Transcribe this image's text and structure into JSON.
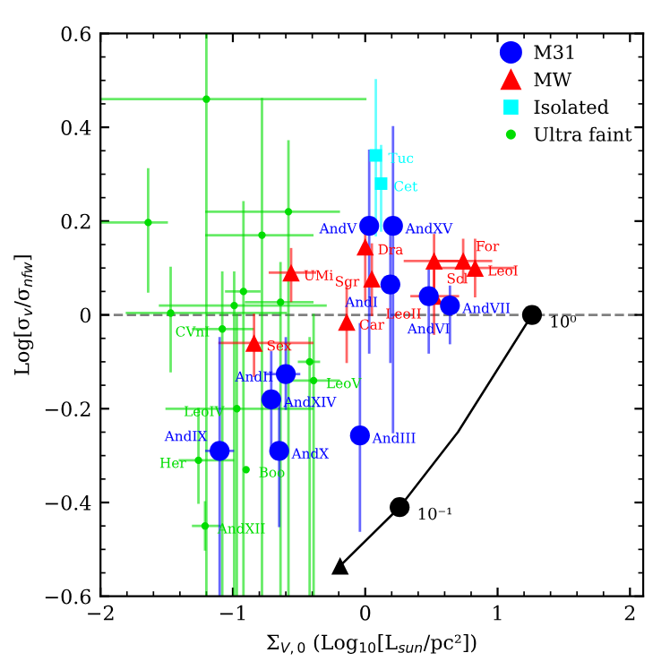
{
  "chart_data": {
    "type": "scatter",
    "xlabel": "Σ$_{V,0}$ (Log$_{10}$[L$_{sun}$/pc²])",
    "ylabel": "Log[σ$_{v}$/σ$_{nfw}$]",
    "xlim": [
      -2,
      2.1
    ],
    "ylim": [
      -0.6,
      0.6
    ],
    "xticks": [
      {
        "value": -2,
        "label": "−2"
      },
      {
        "value": -1,
        "label": "−1"
      },
      0,
      1,
      2
    ],
    "yticks": [
      {
        "value": -0.6,
        "label": "−0.6"
      },
      {
        "value": -0.4,
        "label": "−0.4"
      },
      {
        "value": -0.2,
        "label": "−0.2"
      },
      0,
      0.2,
      0.4,
      0.6
    ],
    "grid": false,
    "legend": "top right",
    "annotations": [
      {
        "text": "10⁰",
        "x": 1.26,
        "y": 0.0
      },
      {
        "text": "10⁻¹",
        "x": 0.26,
        "y": -0.41
      }
    ],
    "ref_lines": [
      {
        "axis": "y",
        "value": 0,
        "color": "#808080",
        "line_style": "dashed"
      }
    ],
    "series": [
      {
        "name": "Ultra faint",
        "color": "#00dd00",
        "marker": "circle",
        "x": [
          -1.64,
          -1.2,
          -0.78,
          -0.58,
          -1.47,
          -0.99,
          -0.92,
          -0.64,
          -1.08,
          -0.39,
          -0.42,
          -0.97,
          -1.26,
          -0.9,
          -1.21
        ],
        "values": [
          0.197,
          0.46,
          0.17,
          0.22,
          0.004,
          0.02,
          0.05,
          0.027,
          -0.03,
          -0.14,
          -0.1,
          -0.2,
          -0.31,
          -0.33,
          -0.45
        ],
        "errors": [
          [
            0.05,
            0.31
          ],
          [
            -0.6,
            0.6
          ],
          [
            -0.6,
            0.46
          ],
          [
            -0.6,
            0.37
          ],
          [
            -0.12,
            0.1
          ],
          [
            -0.6,
            0.09
          ],
          [
            -0.6,
            0.24
          ],
          [
            -0.6,
            0.11
          ],
          [
            -0.6,
            0.09
          ],
          [
            -0.6,
            0.0
          ],
          [
            -0.6,
            -0.05
          ],
          [
            -0.6,
            0.0
          ],
          [
            -0.4,
            -0.2
          ],
          null,
          [
            -0.5,
            -0.4
          ]
        ],
        "xerrors": [
          [
            -2,
            -1.5
          ],
          [
            -2,
            0.0
          ],
          [
            -1.2,
            -0.4
          ],
          [
            -1.2,
            -0.2
          ],
          [
            -1.8,
            -0.6
          ],
          [
            -1.55,
            -0.3
          ],
          [
            -1.05,
            -0.8
          ],
          [
            -0.9,
            -0.4
          ],
          [
            -1.3,
            -0.85
          ],
          [
            -0.55,
            -0.2
          ],
          [
            -0.5,
            -0.35
          ],
          [
            -1.5,
            -0.4
          ],
          [
            -1.4,
            -1.0
          ],
          null,
          [
            -1.3,
            -1.1
          ]
        ],
        "value_labels": [
          null,
          null,
          null,
          null,
          null,
          null,
          null,
          null,
          "CVnI",
          "LeoV",
          null,
          "LeoIV",
          "Her",
          "Boo",
          "AndXII"
        ]
      },
      {
        "name": "Isolated",
        "color": "#00ffff",
        "marker": "square",
        "x": [
          0.08,
          0.12
        ],
        "values": [
          0.34,
          0.28
        ],
        "errors": [
          [
            0.17,
            0.5
          ],
          [
            0.18,
            0.36
          ]
        ],
        "xerrors": [
          null,
          null
        ],
        "value_labels": [
          "Tuc",
          "Cet"
        ]
      },
      {
        "name": "MW",
        "color": "#ff0000",
        "marker": "triangle",
        "x": [
          0.0,
          -0.56,
          0.05,
          0.52,
          0.74,
          0.83,
          0.52,
          -0.14,
          -0.84
        ],
        "values": [
          0.145,
          0.09,
          0.077,
          0.115,
          0.115,
          0.1,
          0.04,
          -0.015,
          -0.06
        ],
        "errors": [
          [
            0.03,
            0.2
          ],
          [
            0.03,
            0.14
          ],
          [
            0.0,
            0.15
          ],
          [
            0.06,
            0.17
          ],
          [
            0.07,
            0.16
          ],
          [
            0.04,
            0.16
          ],
          [
            -0.04,
            0.1
          ],
          [
            -0.1,
            0.06
          ],
          [
            -0.13,
            0.0
          ]
        ],
        "xerrors": [
          null,
          [
            -0.72,
            -0.38
          ],
          null,
          [
            0.3,
            0.7
          ],
          [
            0.55,
            0.95
          ],
          [
            0.55,
            1.12
          ],
          [
            0.35,
            0.7
          ],
          null,
          [
            -1.1,
            -0.4
          ]
        ],
        "value_labels": [
          "Dra",
          "UMi",
          "Sgr",
          "Scl",
          "For",
          "LeoI",
          "LeoII",
          "Car",
          "Sex"
        ]
      },
      {
        "name": "M31",
        "color": "#0000ff",
        "marker": "circle",
        "x": [
          0.03,
          0.21,
          0.19,
          0.48,
          0.64,
          -0.6,
          -0.71,
          -0.04,
          -0.65,
          -1.1
        ],
        "values": [
          0.19,
          0.19,
          0.065,
          0.04,
          0.02,
          -0.126,
          -0.18,
          -0.257,
          -0.29,
          -0.29
        ],
        "errors": [
          [
            -0.08,
            0.35
          ],
          [
            -0.25,
            0.4
          ],
          [
            -0.1,
            0.2
          ],
          [
            -0.08,
            0.1
          ],
          [
            -0.06,
            0.06
          ],
          [
            -0.2,
            -0.05
          ],
          [
            -0.29,
            -0.08
          ],
          [
            -0.46,
            -0.02
          ],
          [
            -0.45,
            -0.18
          ],
          [
            -0.6,
            -0.05
          ]
        ],
        "xerrors": [
          null,
          null,
          null,
          null,
          null,
          [
            -0.75,
            -0.5
          ],
          null,
          null,
          null,
          [
            -1.2,
            -1.0
          ]
        ],
        "value_labels": [
          "AndV",
          "AndXV",
          "AndI",
          "AndVI",
          "AndVII",
          "AndII",
          "AndXIV",
          "AndIII",
          "AndX",
          "AndIX"
        ]
      },
      {
        "type": "line",
        "color": "#000000",
        "marker": "none",
        "x": [
          1.26,
          0.7,
          0.26,
          -0.19
        ],
        "values": [
          0.0,
          -0.25,
          -0.41,
          -0.535
        ]
      },
      {
        "color": "#000000",
        "marker": "circle",
        "x": [
          1.26,
          0.26
        ],
        "values": [
          0.0,
          -0.41
        ]
      },
      {
        "color": "#000000",
        "marker": "triangle",
        "x": [
          -0.19
        ],
        "values": [
          -0.535
        ]
      }
    ]
  }
}
